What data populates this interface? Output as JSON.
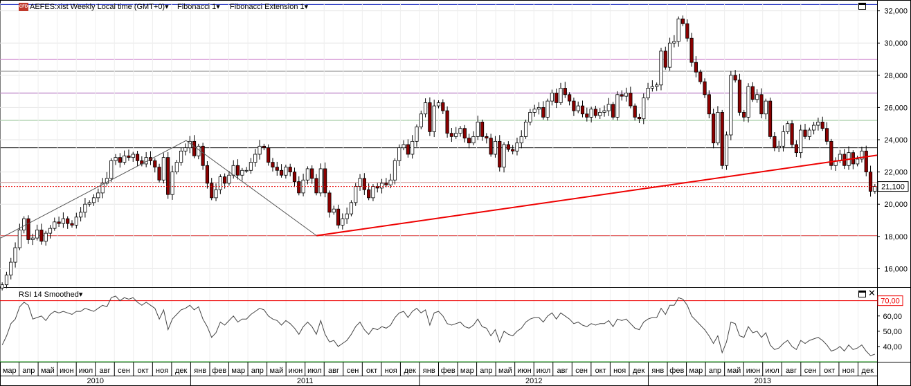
{
  "header": {
    "symbol_text": "AEFES:xist Weekly Local time (GMT+0)▾",
    "badge": "CFD",
    "fib1": "Fibonacci 1▾",
    "fib_ext": "Fibonacci Extension 1▾"
  },
  "rsi_header": {
    "label": "RSI 14 Smoothed▾"
  },
  "current_price": "21,100",
  "rsi_level_label": "70,00",
  "colors": {
    "up": "#ffffff",
    "down": "#8b0000",
    "trendline": "#ee0000",
    "grid": "#dddddd"
  },
  "chart_data": [
    {
      "type": "candlestick",
      "yticks": [
        "16,000",
        "18,000",
        "20,000",
        "22,000",
        "24,000",
        "26,000",
        "28,000",
        "30,000",
        "32,000"
      ],
      "ylim": [
        14900,
        32500
      ],
      "months": [
        "мар",
        "апр",
        "май",
        "июн",
        "июл",
        "авг",
        "сен",
        "окт",
        "ноя",
        "дек",
        "янв",
        "фев",
        "мар",
        "апр",
        "май",
        "июн",
        "июл",
        "авг",
        "сен",
        "окт",
        "ноя",
        "дек",
        "янв",
        "фев",
        "мар",
        "апр",
        "май",
        "июн",
        "июл",
        "авг",
        "сен",
        "окт",
        "ноя",
        "дек",
        "янв",
        "фев",
        "мар",
        "апр",
        "май",
        "июн",
        "июл",
        "авг",
        "сен",
        "окт",
        "ноя",
        "дек"
      ],
      "years": [
        "2010",
        "2011",
        "2012",
        "2013"
      ],
      "last_price": 21100,
      "close": [
        15000,
        15600,
        16400,
        17300,
        18400,
        19100,
        17800,
        17900,
        18400,
        17700,
        18200,
        18500,
        18900,
        18800,
        19100,
        18800,
        18700,
        19200,
        19500,
        20000,
        20100,
        20400,
        20700,
        21300,
        21600,
        22700,
        22900,
        22600,
        23000,
        22900,
        23100,
        22700,
        22500,
        22900,
        22700,
        22300,
        21500,
        22900,
        20600,
        22000,
        22600,
        23300,
        23500,
        23900,
        23000,
        23600,
        22400,
        21300,
        20400,
        20900,
        21700,
        21300,
        21800,
        22400,
        21800,
        22100,
        22100,
        22600,
        23100,
        23600,
        23500,
        22600,
        22300,
        22100,
        21800,
        22300,
        22000,
        21400,
        20700,
        21500,
        22200,
        21600,
        20700,
        22200,
        20700,
        19500,
        19700,
        18700,
        19100,
        19400,
        20100,
        21100,
        21600,
        20900,
        20400,
        21100,
        21000,
        21300,
        21200,
        21500,
        22700,
        23500,
        23700,
        23100,
        23900,
        24800,
        25600,
        26300,
        24500,
        26100,
        26300,
        25800,
        24400,
        24200,
        24400,
        24700,
        24100,
        23800,
        24200,
        25100,
        24200,
        24100,
        23100,
        23900,
        22300,
        23700,
        23400,
        23300,
        23800,
        24200,
        25100,
        25700,
        25900,
        26000,
        25400,
        26400,
        26900,
        26300,
        27200,
        26800,
        26400,
        25800,
        26100,
        25600,
        25400,
        25900,
        25500,
        25700,
        25800,
        26200,
        25400,
        26800,
        26700,
        26900,
        26100,
        25400,
        25300,
        26600,
        27200,
        27300,
        27400,
        29500,
        28500,
        30000,
        30100,
        31500,
        31200,
        30300,
        28800,
        28200,
        27600,
        26800,
        25600,
        23800,
        25700,
        22400,
        24300,
        28000,
        27700,
        25700,
        25400,
        27300,
        26500,
        26800,
        25600,
        26400,
        24200,
        23500,
        23600,
        24500,
        25000,
        23700,
        23200,
        24600,
        24200,
        24600,
        24900,
        25100,
        24700,
        23900,
        22400,
        22700,
        23100,
        22400,
        23200,
        22500,
        22800,
        23300,
        22000,
        20800,
        21100
      ],
      "open_approx": "previous close",
      "trendline_points": [
        [
          2011.55,
          18050
        ],
        [
          2013.98,
          23000
        ]
      ],
      "fib_levels": [
        18050,
        21350,
        23500,
        25200,
        26900,
        28250,
        29000,
        32400
      ]
    },
    {
      "type": "line",
      "name": "RSI 14 Smoothed",
      "yticks": [
        "40,00",
        "50,00",
        "60,00",
        "70,00"
      ],
      "ylim": [
        30,
        78
      ],
      "level": 70,
      "values": [
        41,
        47,
        55,
        58,
        66,
        69,
        67,
        58,
        59,
        60,
        57,
        61,
        63,
        62,
        63,
        62,
        61,
        63,
        63,
        65,
        64,
        63,
        65,
        67,
        66,
        72,
        73,
        70,
        72,
        71,
        72,
        69,
        67,
        69,
        67,
        65,
        58,
        64,
        51,
        58,
        61,
        64,
        65,
        67,
        64,
        66,
        58,
        53,
        46,
        49,
        56,
        54,
        57,
        60,
        56,
        58,
        58,
        61,
        63,
        65,
        64,
        60,
        58,
        57,
        54,
        57,
        55,
        52,
        48,
        53,
        56,
        53,
        48,
        57,
        48,
        43,
        44,
        40,
        42,
        44,
        48,
        53,
        56,
        51,
        48,
        52,
        51,
        53,
        52,
        54,
        59,
        62,
        63,
        59,
        63,
        65,
        62,
        64,
        54,
        62,
        63,
        60,
        55,
        54,
        55,
        56,
        53,
        52,
        54,
        58,
        53,
        52,
        47,
        51,
        43,
        50,
        48,
        47,
        50,
        52,
        56,
        58,
        59,
        59,
        56,
        60,
        62,
        58,
        62,
        60,
        58,
        55,
        56,
        54,
        53,
        55,
        54,
        55,
        55,
        57,
        53,
        58,
        57,
        58,
        55,
        52,
        51,
        56,
        58,
        59,
        59,
        65,
        61,
        67,
        67,
        72,
        71,
        67,
        60,
        57,
        54,
        51,
        47,
        42,
        47,
        36,
        43,
        56,
        55,
        47,
        46,
        53,
        49,
        50,
        46,
        49,
        41,
        38,
        39,
        42,
        44,
        40,
        38,
        44,
        42,
        44,
        45,
        46,
        44,
        41,
        37,
        38,
        40,
        37,
        41,
        38,
        39,
        41,
        37,
        34,
        35
      ]
    }
  ]
}
